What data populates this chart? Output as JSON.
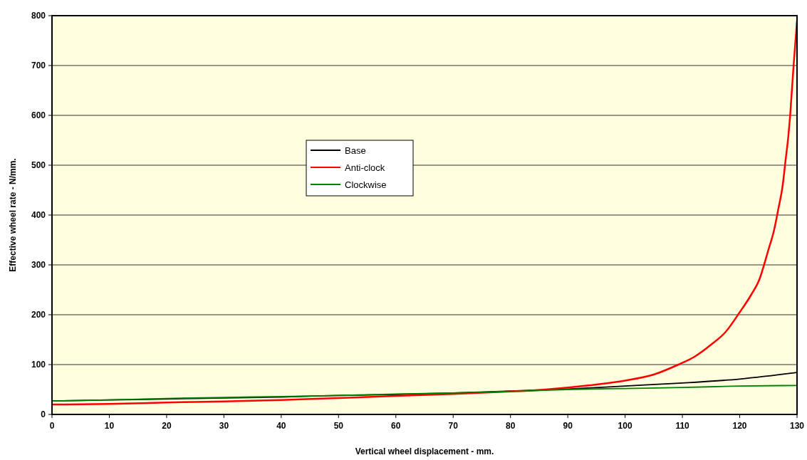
{
  "chart_data": {
    "type": "line",
    "xlabel": "Vertical wheel displacement - mm.",
    "ylabel": "Effective wheel rate - N/mm.",
    "xlim": [
      0,
      130
    ],
    "xticks": [
      0,
      10,
      20,
      30,
      40,
      50,
      60,
      70,
      80,
      90,
      100,
      110,
      120,
      130
    ],
    "ylim": [
      0,
      800
    ],
    "yticks": [
      0,
      100,
      200,
      300,
      400,
      500,
      600,
      700,
      800
    ],
    "grid": "y",
    "legend": "left",
    "line_style": "solid",
    "series": [
      {
        "name": "Base",
        "color": "#000000",
        "x": [
          0,
          10,
          20,
          30,
          40,
          50,
          60,
          70,
          80,
          90,
          100,
          110,
          120,
          130
        ],
        "values": [
          27,
          29,
          31,
          33,
          35,
          38,
          40,
          43,
          47,
          51,
          57,
          63,
          71,
          84
        ]
      },
      {
        "name": "Anti-clock",
        "color": "#ff0000",
        "x": [
          0,
          10,
          20,
          30,
          40,
          50,
          60,
          70,
          80,
          85,
          90,
          95,
          100,
          105,
          109.3,
          112,
          115,
          117.5,
          120,
          122,
          123.4,
          125,
          126,
          126.7,
          127.5,
          128,
          128.5,
          128.8,
          129.4,
          130
        ],
        "values": [
          20,
          21,
          24,
          26,
          29,
          33,
          37,
          41,
          46,
          49,
          54,
          60,
          68,
          80,
          100,
          115,
          140,
          165,
          205,
          240,
          270,
          330,
          370,
          410,
          460,
          510,
          560,
          600,
          700,
          790
        ]
      },
      {
        "name": "Clockwise",
        "color": "#008000",
        "x": [
          0,
          10,
          20,
          30,
          40,
          50,
          60,
          70,
          80,
          90,
          100,
          110,
          120,
          130
        ],
        "values": [
          27,
          29,
          32,
          34,
          36,
          38,
          41,
          43,
          46,
          50,
          52,
          54,
          57,
          58
        ]
      }
    ]
  }
}
